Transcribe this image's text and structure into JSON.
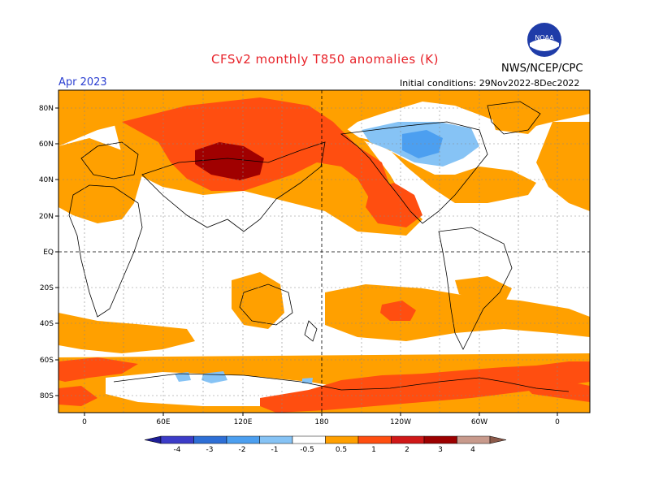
{
  "header": {
    "title": "CFSv2 monthly T850 anomalies (K)",
    "agency": "NWS/NCEP/CPC",
    "logo_text": "NOAA",
    "month": "Apr 2023",
    "initial_conditions": "Initial conditions: 29Nov2022-8Dec2022"
  },
  "axes": {
    "lat_labels": [
      "80N",
      "60N",
      "40N",
      "20N",
      "EQ",
      "20S",
      "40S",
      "60S",
      "80S"
    ],
    "lon_labels": [
      "0",
      "60E",
      "120E",
      "180",
      "120W",
      "60W",
      "0"
    ]
  },
  "colorbar": {
    "labels": [
      "-4",
      "-3",
      "-2",
      "-1",
      "-0.5",
      "0.5",
      "1",
      "2",
      "3",
      "4"
    ],
    "colors": [
      "#1e1e96",
      "#3c3cc8",
      "#2e6fd6",
      "#4c9ff0",
      "#86c3f5",
      "#ffffff",
      "#ffa000",
      "#ff4e10",
      "#d01818",
      "#9c0000",
      "#c89a8c",
      "#8c5a4a"
    ]
  }
}
